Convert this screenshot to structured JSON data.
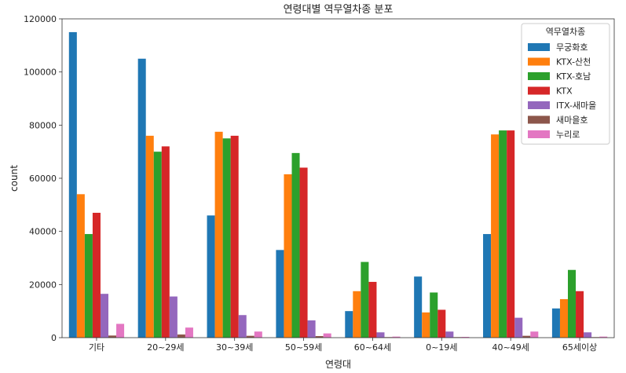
{
  "chart_data": {
    "type": "bar",
    "title": "연령대별 역무열차종 분포",
    "xlabel": "연령대",
    "ylabel": "count",
    "ylim": [
      0,
      120000
    ],
    "yticks": [
      0,
      20000,
      40000,
      60000,
      80000,
      100000,
      120000
    ],
    "categories": [
      "기타",
      "20~29세",
      "30~39세",
      "50~59세",
      "60~64세",
      "0~19세",
      "40~49세",
      "65세이상"
    ],
    "legend_title": "역무열차종",
    "legend_position": "top-right",
    "grid": false,
    "series": [
      {
        "name": "무궁화호",
        "color": "#1f77b4",
        "values": [
          115000,
          105000,
          46000,
          33000,
          10000,
          23000,
          39000,
          11000
        ]
      },
      {
        "name": "KTX-산천",
        "color": "#ff7f0e",
        "values": [
          54000,
          76000,
          77500,
          61500,
          17500,
          9500,
          76500,
          14500
        ]
      },
      {
        "name": "KTX-호남",
        "color": "#2ca02c",
        "values": [
          39000,
          70000,
          75000,
          69500,
          28500,
          17000,
          78000,
          25500
        ]
      },
      {
        "name": "KTX",
        "color": "#d62728",
        "values": [
          47000,
          72000,
          76000,
          64000,
          21000,
          10500,
          78000,
          17500
        ]
      },
      {
        "name": "ITX-새마을",
        "color": "#9467bd",
        "values": [
          16500,
          15500,
          8500,
          6500,
          2000,
          2300,
          7500,
          2000
        ]
      },
      {
        "name": "새마을호",
        "color": "#8c564b",
        "values": [
          800,
          1200,
          700,
          600,
          200,
          200,
          700,
          200
        ]
      },
      {
        "name": "누리로",
        "color": "#e377c2",
        "values": [
          5200,
          3800,
          2300,
          1600,
          400,
          300,
          2300,
          400
        ]
      }
    ]
  }
}
